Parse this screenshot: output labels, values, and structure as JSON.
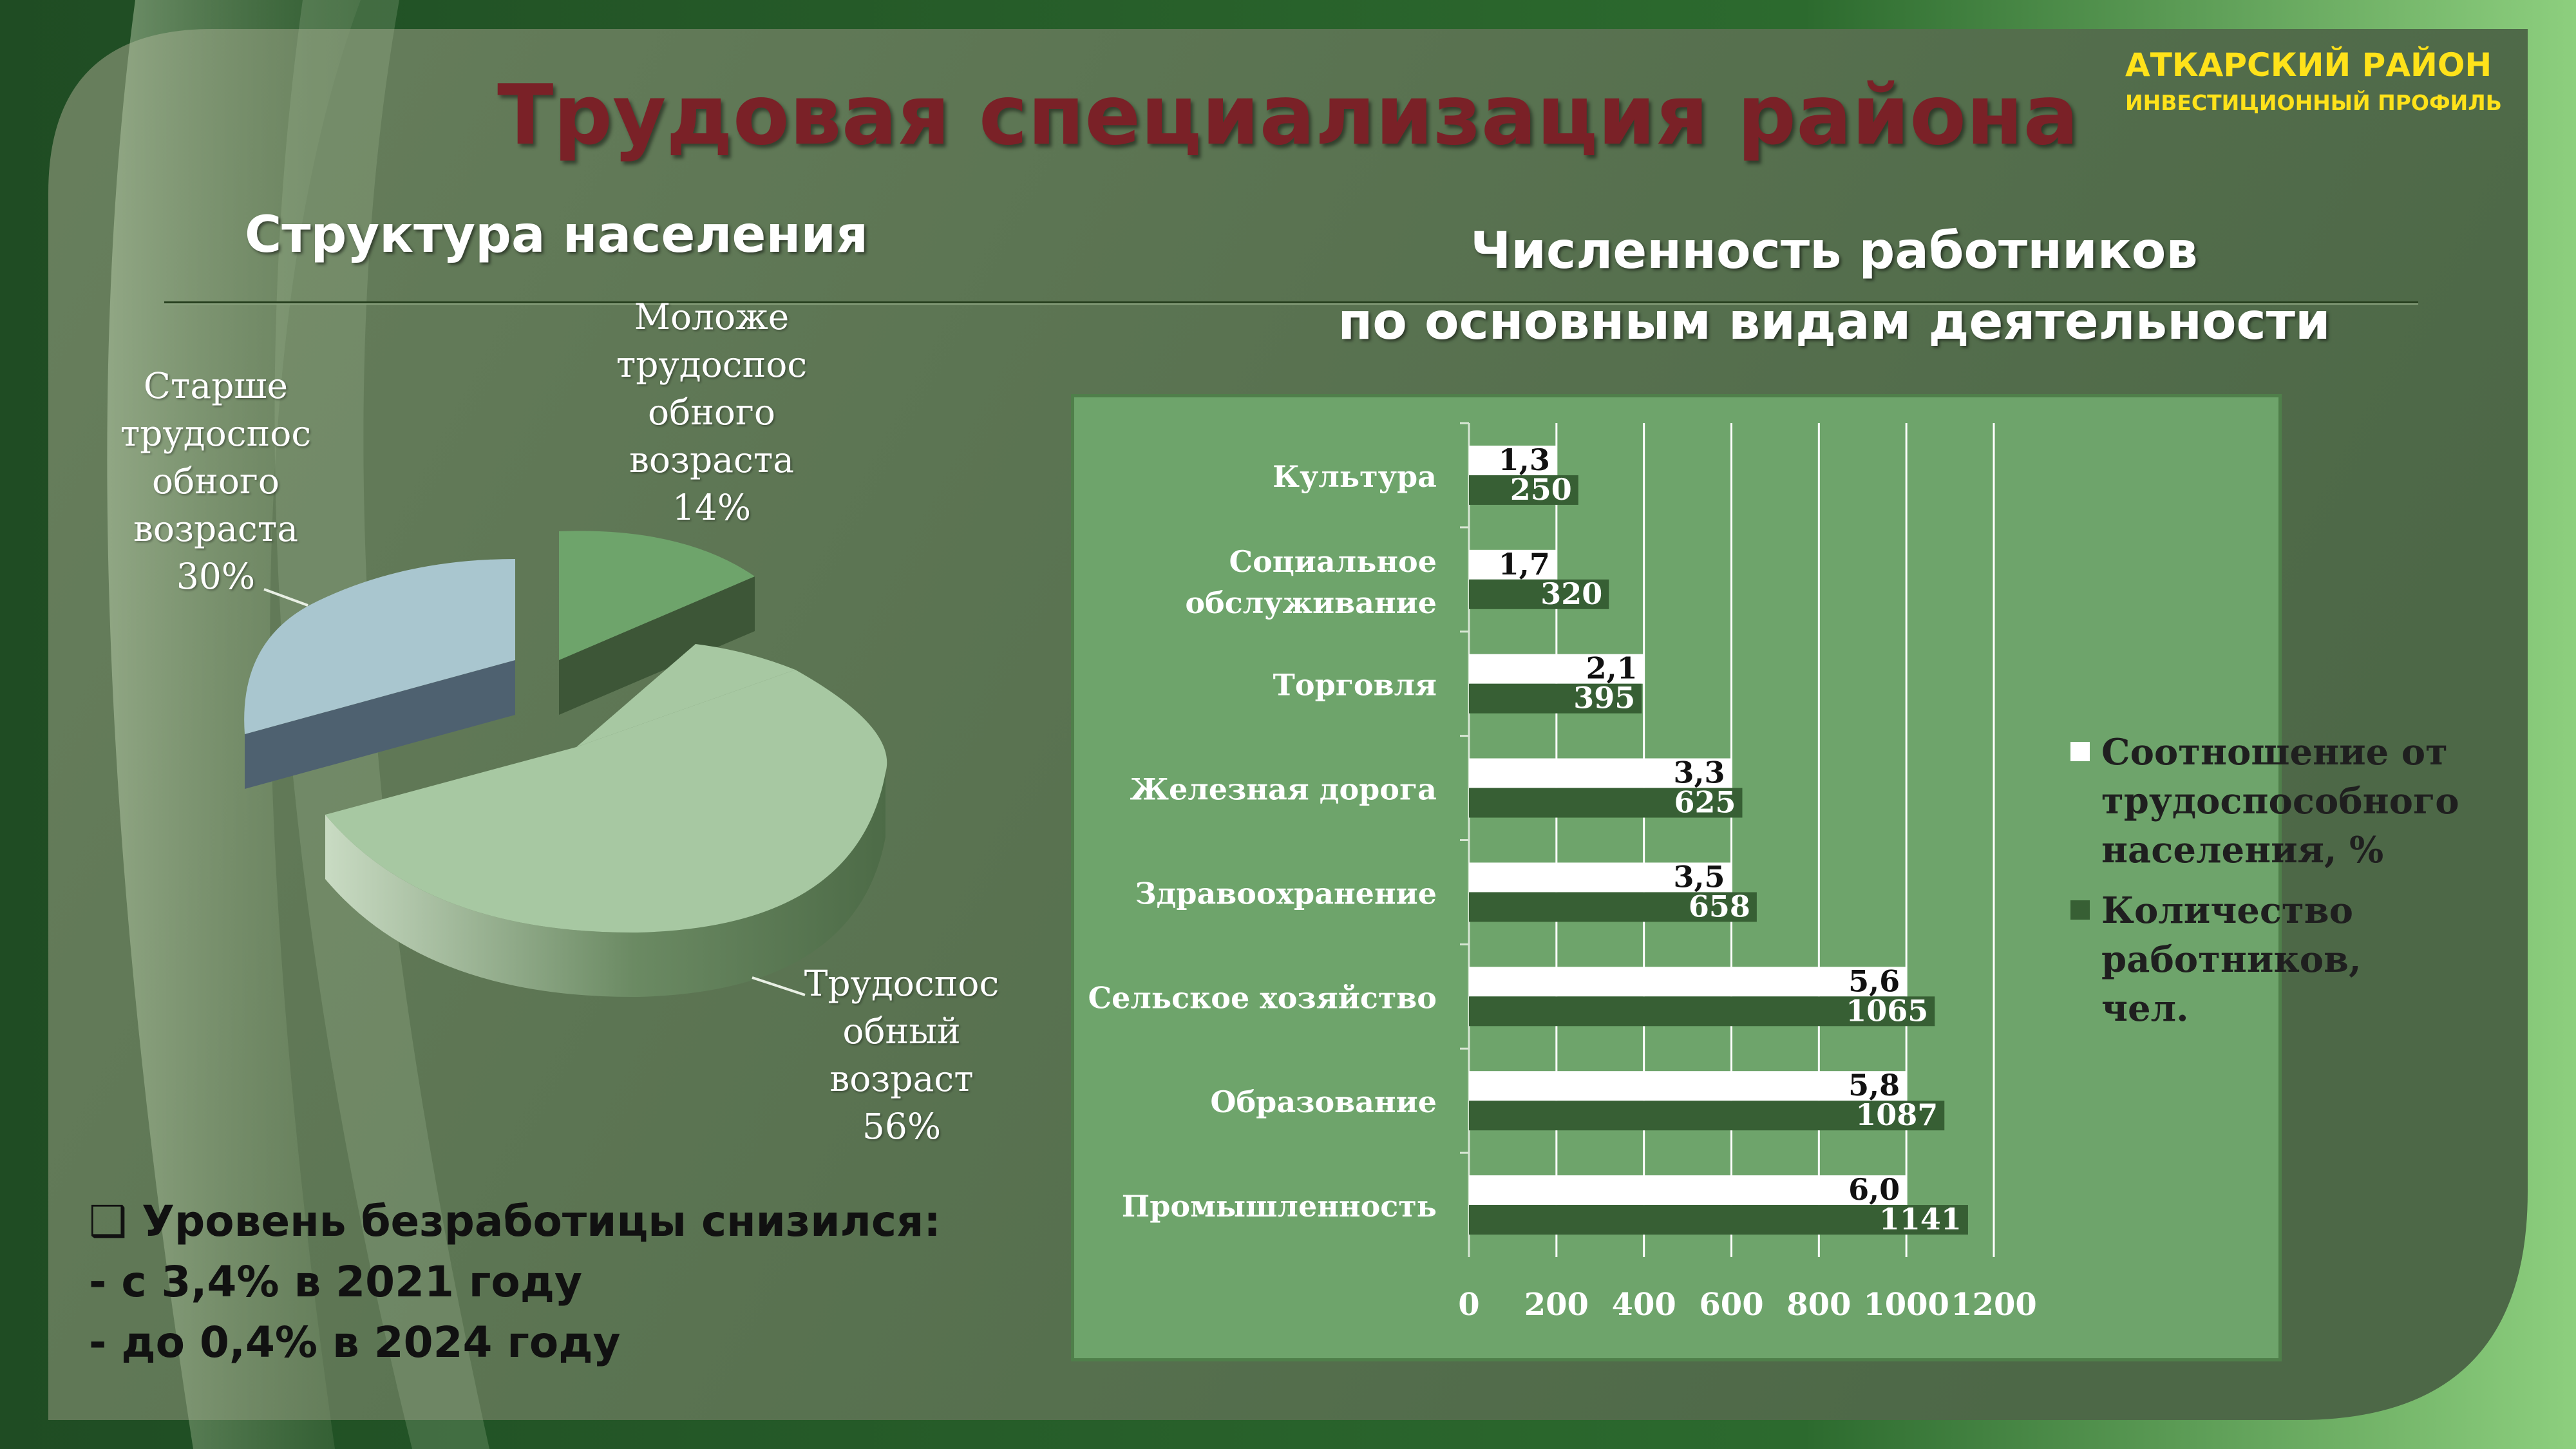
{
  "header": {
    "title": "Трудовая специализация района",
    "district": "АТКАРСКИЙ РАЙОН",
    "profile": "ИНВЕСТИЦИОННЫЙ ПРОФИЛЬ"
  },
  "left": {
    "heading": "Структура населения",
    "pie_labels": {
      "younger": [
        "Моложе",
        "трудоспос",
        "обного",
        "возраста",
        "14%"
      ],
      "older": [
        "Старше",
        "трудоспос",
        "обного",
        "возраста",
        "30%"
      ],
      "working": [
        "Трудоспос",
        "обный",
        "возраст",
        "56%"
      ]
    }
  },
  "right": {
    "heading_line1": "Численность работников",
    "heading_line2": "по основным видам деятельности"
  },
  "note": {
    "checkbox": "❑",
    "line1": "Уровень безработицы снизился:",
    "line2": "- с 3,4% в 2021 году",
    "line3": "- до 0,4% в 2024 году"
  },
  "colors": {
    "title": "#7a2127",
    "accent_yellow": "#ffe21a",
    "bar_white": "#ffffff",
    "bar_dark": "#375f34",
    "pie_younger": "#6ea46b",
    "pie_older": "#a9c6cf",
    "pie_working": "#a7c8a2"
  },
  "chart_data": [
    {
      "type": "pie",
      "title": "Структура населения",
      "categories": [
        "Моложе трудоспособного возраста",
        "Старше трудоспособного возраста",
        "Трудоспособный возраст"
      ],
      "values": [
        14,
        30,
        56
      ],
      "unit": "%"
    },
    {
      "type": "bar",
      "orientation": "horizontal",
      "title": "Численность работников по основным видам деятельности",
      "categories": [
        "Культура",
        "Социальное обслуживание",
        "Торговля",
        "Железная дорога",
        "Здравоохранение",
        "Сельское хозяйство",
        "Образование",
        "Промышленность"
      ],
      "series": [
        {
          "name": "Соотношение от трудоспособного населения, %",
          "values": [
            1.3,
            1.7,
            2.1,
            3.3,
            3.5,
            5.6,
            5.8,
            6.0
          ],
          "labels": [
            "1,3",
            "1,7",
            "2,1",
            "3,3",
            "3,5",
            "5,6",
            "5,8",
            "6,0"
          ],
          "display_values": [
            200,
            200,
            400,
            600,
            600,
            1000,
            1000,
            1000
          ]
        },
        {
          "name": "Количество работников, чел.",
          "values": [
            250,
            320,
            395,
            625,
            658,
            1065,
            1087,
            1141
          ],
          "labels": [
            "250",
            "320",
            "395",
            "625",
            "658",
            "1065",
            "1087",
            "1141"
          ]
        }
      ],
      "xlim": [
        0,
        1200
      ],
      "xticks": [
        0,
        200,
        400,
        600,
        800,
        1000,
        1200
      ],
      "grid": true,
      "legend_position": "right"
    }
  ]
}
